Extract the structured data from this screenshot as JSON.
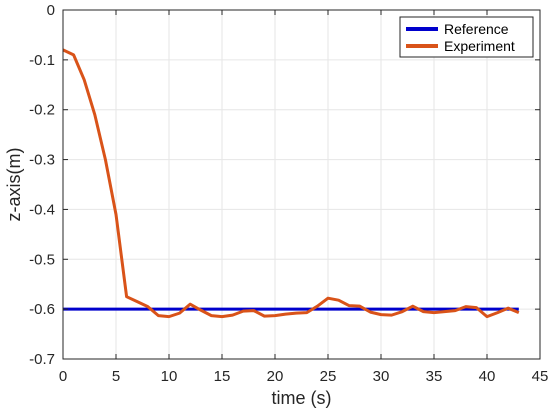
{
  "chart_data": {
    "type": "line",
    "title": "",
    "xlabel": "time (s)",
    "ylabel": "z-axis(m)",
    "xlim": [
      0,
      45
    ],
    "ylim": [
      -0.7,
      0
    ],
    "xticks": [
      0,
      5,
      10,
      15,
      20,
      25,
      30,
      35,
      40,
      45
    ],
    "yticks": [
      0,
      -0.1,
      -0.2,
      -0.3,
      -0.4,
      -0.5,
      -0.6,
      -0.7
    ],
    "xtick_labels": [
      "0",
      "5",
      "10",
      "15",
      "20",
      "25",
      "30",
      "35",
      "40",
      "45"
    ],
    "ytick_labels": [
      "0",
      "-0.1",
      "-0.2",
      "-0.3",
      "-0.4",
      "-0.5",
      "-0.6",
      "-0.7"
    ],
    "grid": true,
    "legend_position": "top-right",
    "series": [
      {
        "name": "Reference",
        "color": "#0000cc",
        "x": [
          0,
          43
        ],
        "y": [
          -0.6,
          -0.6
        ]
      },
      {
        "name": "Experiment",
        "color": "#d95319",
        "x": [
          0,
          1,
          2,
          3,
          4,
          5,
          6,
          7,
          8,
          9,
          10,
          11,
          12,
          13,
          14,
          15,
          16,
          17,
          18,
          19,
          20,
          21,
          22,
          23,
          24,
          25,
          26,
          27,
          28,
          29,
          30,
          31,
          32,
          33,
          34,
          35,
          36,
          37,
          38,
          39,
          40,
          41,
          42,
          43
        ],
        "y": [
          -0.08,
          -0.09,
          -0.14,
          -0.21,
          -0.3,
          -0.41,
          -0.575,
          -0.585,
          -0.595,
          -0.613,
          -0.615,
          -0.608,
          -0.59,
          -0.602,
          -0.613,
          -0.615,
          -0.612,
          -0.604,
          -0.603,
          -0.614,
          -0.613,
          -0.61,
          -0.608,
          -0.607,
          -0.594,
          -0.578,
          -0.582,
          -0.593,
          -0.594,
          -0.606,
          -0.611,
          -0.612,
          -0.605,
          -0.594,
          -0.605,
          -0.607,
          -0.605,
          -0.603,
          -0.595,
          -0.597,
          -0.615,
          -0.607,
          -0.598,
          -0.607
        ]
      }
    ]
  }
}
